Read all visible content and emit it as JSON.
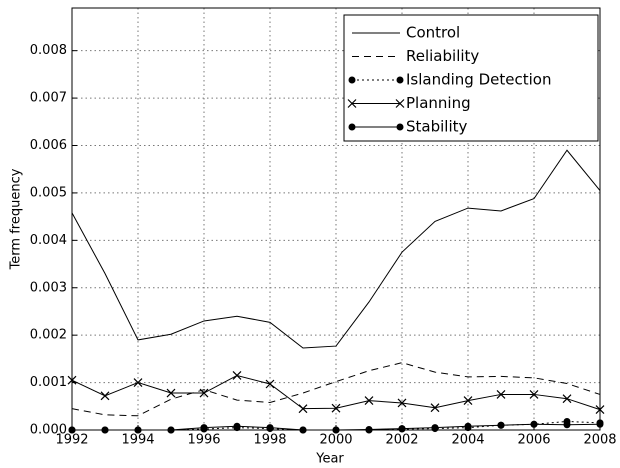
{
  "chart_data": {
    "type": "line",
    "xlabel": "Year",
    "ylabel": "Term frequency",
    "x": [
      1992,
      1993,
      1994,
      1995,
      1996,
      1997,
      1998,
      1999,
      2000,
      2001,
      2002,
      2003,
      2004,
      2005,
      2006,
      2007,
      2008
    ],
    "series": [
      {
        "name": "Control",
        "color": "#000000",
        "linestyle": "solid",
        "marker": "none",
        "values": [
          0.00458,
          0.0033,
          0.0019,
          0.00202,
          0.0023,
          0.0024,
          0.00227,
          0.00173,
          0.00177,
          0.0027,
          0.00375,
          0.0044,
          0.00468,
          0.00462,
          0.00488,
          0.0059,
          0.00505
        ]
      },
      {
        "name": "Reliability",
        "color": "#000000",
        "linestyle": "dashed",
        "marker": "none",
        "values": [
          0.00045,
          0.00032,
          0.0003,
          0.00065,
          0.00085,
          0.00063,
          0.00058,
          0.00078,
          0.00102,
          0.00125,
          0.00142,
          0.00122,
          0.00112,
          0.00113,
          0.0011,
          0.00098,
          0.00075
        ]
      },
      {
        "name": "Islanding Detection",
        "color": "#000000",
        "linestyle": "dotted",
        "marker": "o",
        "values": [
          0,
          0,
          0,
          0,
          2e-05,
          5e-05,
          3e-05,
          0,
          0,
          0,
          2e-05,
          3e-05,
          5e-05,
          0.0001,
          0.00012,
          0.00018,
          0.00015
        ]
      },
      {
        "name": "Planning",
        "color": "#000000",
        "linestyle": "solid",
        "marker": "x",
        "values": [
          0.00105,
          0.00072,
          0.001,
          0.00078,
          0.00078,
          0.00115,
          0.00097,
          0.00045,
          0.00046,
          0.00062,
          0.00057,
          0.00047,
          0.00062,
          0.00075,
          0.00075,
          0.00066,
          0.00043
        ]
      },
      {
        "name": "Stability",
        "color": "#000000",
        "linestyle": "solid",
        "marker": "o",
        "values": [
          0,
          0,
          0,
          0,
          5e-05,
          8e-05,
          5e-05,
          0,
          0,
          1e-05,
          3e-05,
          5e-05,
          8e-05,
          0.0001,
          0.00012,
          0.00011,
          0.00012
        ]
      }
    ],
    "xlim": [
      1992,
      2008
    ],
    "xticks": [
      1992,
      1994,
      1996,
      1998,
      2000,
      2002,
      2004,
      2006,
      2008
    ],
    "ylim": [
      0,
      0.0089
    ],
    "yticks": [
      {
        "value": 0,
        "label": "0.000"
      },
      {
        "value": 0.001,
        "label": "0.001"
      },
      {
        "value": 0.002,
        "label": "0.002"
      },
      {
        "value": 0.003,
        "label": "0.003"
      },
      {
        "value": 0.004,
        "label": "0.004"
      },
      {
        "value": 0.005,
        "label": "0.005"
      },
      {
        "value": 0.006,
        "label": "0.006"
      },
      {
        "value": 0.007,
        "label": "0.007"
      },
      {
        "value": 0.008,
        "label": "0.008"
      }
    ],
    "grid": true,
    "legend": "upper right"
  }
}
